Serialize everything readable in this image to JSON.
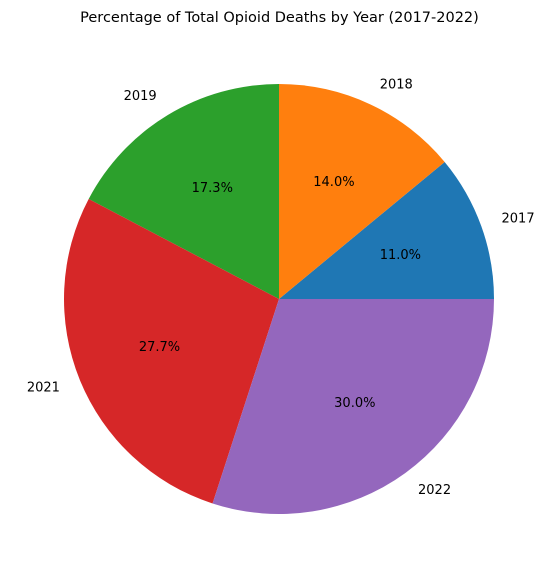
{
  "chart_data": {
    "type": "pie",
    "title": "Percentage of Total Opioid Deaths by Year (2017-2022)",
    "categories": [
      "2017",
      "2018",
      "2019",
      "2021",
      "2022"
    ],
    "values": [
      11.0,
      14.0,
      17.3,
      27.7,
      30.0
    ],
    "value_labels": [
      "11.0%",
      "14.0%",
      "17.3%",
      "27.7%",
      "30.0%"
    ],
    "colors": [
      "#1f77b4",
      "#ff7f0e",
      "#2ca02c",
      "#d62728",
      "#9467bd"
    ],
    "start_angle_deg": 0,
    "direction": "counterclockwise",
    "legend": "none"
  }
}
